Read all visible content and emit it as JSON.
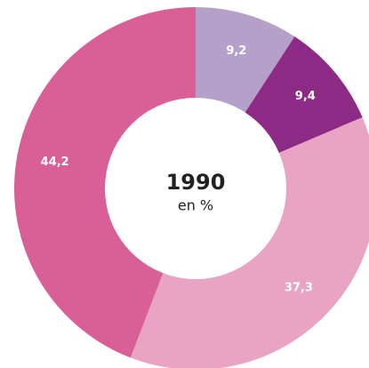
{
  "chart_data": {
    "type": "donut",
    "title": "1990",
    "subtitle": "en %",
    "categories": [
      null,
      null,
      null,
      null
    ],
    "values": [
      9.2,
      9.4,
      37.3,
      44.2
    ],
    "value_labels": [
      "9,2",
      "9,4",
      "37,3",
      "44,2"
    ],
    "colors": [
      "#b5a0ca",
      "#8d2a85",
      "#e9a3c3",
      "#d95f97"
    ]
  }
}
